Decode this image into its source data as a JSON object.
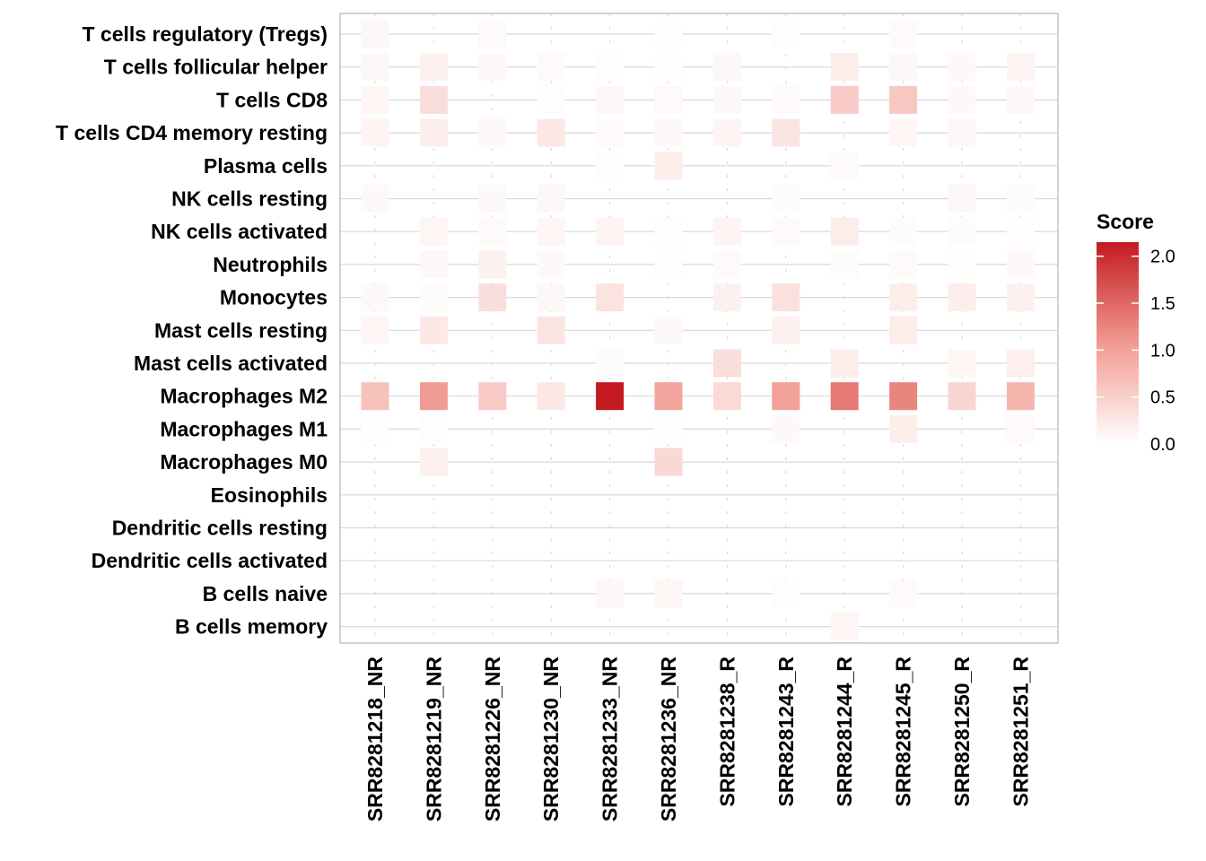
{
  "chart_data": {
    "type": "heatmap",
    "title": "",
    "xlabel": "",
    "ylabel": "",
    "columns": [
      "SRR8281218_NR",
      "SRR8281219_NR",
      "SRR8281226_NR",
      "SRR8281230_NR",
      "SRR8281233_NR",
      "SRR8281236_NR",
      "SRR8281238_R",
      "SRR8281243_R",
      "SRR8281244_R",
      "SRR8281245_R",
      "SRR8281250_R",
      "SRR8281251_R"
    ],
    "rows": [
      "T cells regulatory (Tregs)",
      "T cells follicular helper",
      "T cells CD8",
      "T cells CD4 memory resting",
      "Plasma cells",
      "NK cells resting",
      "NK cells activated",
      "Neutrophils",
      "Monocytes",
      "Mast cells resting",
      "Mast cells activated",
      "Macrophages M2",
      "Macrophages M1",
      "Macrophages M0",
      "Eosinophils",
      "Dendritic cells resting",
      "Dendritic cells activated",
      "B cells naive",
      "B cells memory"
    ],
    "values": [
      [
        0.08,
        0.0,
        0.05,
        0.0,
        0.0,
        0.02,
        0.0,
        0.03,
        0.0,
        0.05,
        0.0,
        0.0
      ],
      [
        0.08,
        0.15,
        0.08,
        0.05,
        0.03,
        0.02,
        0.08,
        0.0,
        0.2,
        0.08,
        0.07,
        0.12
      ],
      [
        0.1,
        0.35,
        0.0,
        0.03,
        0.08,
        0.05,
        0.07,
        0.05,
        0.55,
        0.6,
        0.07,
        0.08
      ],
      [
        0.12,
        0.18,
        0.07,
        0.25,
        0.05,
        0.07,
        0.12,
        0.28,
        0.0,
        0.1,
        0.08,
        0.0
      ],
      [
        0.0,
        0.0,
        0.0,
        0.0,
        0.03,
        0.18,
        0.0,
        0.0,
        0.05,
        0.0,
        0.0,
        0.0
      ],
      [
        0.07,
        0.0,
        0.06,
        0.08,
        0.0,
        0.0,
        0.0,
        0.04,
        0.0,
        0.0,
        0.08,
        0.04
      ],
      [
        0.0,
        0.1,
        0.05,
        0.1,
        0.12,
        0.03,
        0.12,
        0.05,
        0.2,
        0.04,
        0.04,
        0.02
      ],
      [
        0.0,
        0.08,
        0.15,
        0.06,
        0.0,
        0.02,
        0.05,
        0.0,
        0.04,
        0.05,
        0.03,
        0.07
      ],
      [
        0.07,
        0.04,
        0.35,
        0.08,
        0.3,
        0.0,
        0.15,
        0.32,
        0.0,
        0.18,
        0.18,
        0.15
      ],
      [
        0.1,
        0.25,
        0.0,
        0.28,
        0.0,
        0.06,
        0.0,
        0.15,
        0.0,
        0.2,
        0.0,
        0.0
      ],
      [
        0.0,
        0.0,
        0.0,
        0.0,
        0.04,
        0.0,
        0.35,
        0.0,
        0.2,
        0.0,
        0.09,
        0.17
      ],
      [
        0.65,
        1.05,
        0.55,
        0.25,
        2.15,
        0.95,
        0.4,
        1.0,
        1.35,
        1.25,
        0.45,
        0.78
      ],
      [
        0.02,
        0.03,
        0.0,
        0.0,
        0.0,
        0.02,
        0.0,
        0.06,
        0.0,
        0.18,
        0.0,
        0.05
      ],
      [
        0.0,
        0.15,
        0.0,
        0.0,
        0.0,
        0.42,
        0.0,
        0.0,
        0.0,
        0.0,
        0.0,
        0.0
      ],
      [
        0.0,
        0.0,
        0.0,
        0.0,
        0.0,
        0.0,
        0.0,
        0.0,
        0.0,
        0.0,
        0.0,
        0.0
      ],
      [
        0.0,
        0.0,
        0.0,
        0.0,
        0.0,
        0.0,
        0.0,
        0.0,
        0.0,
        0.0,
        0.0,
        0.0
      ],
      [
        0.0,
        0.0,
        0.0,
        0.0,
        0.0,
        0.0,
        0.0,
        0.0,
        0.0,
        0.0,
        0.0,
        0.0
      ],
      [
        0.0,
        0.0,
        0.0,
        0.0,
        0.08,
        0.1,
        0.0,
        0.03,
        0.0,
        0.05,
        0.0,
        0.0
      ],
      [
        0.0,
        0.0,
        0.0,
        0.0,
        0.0,
        0.0,
        0.0,
        0.0,
        0.1,
        0.0,
        0.0,
        0.0
      ]
    ],
    "color_scale": {
      "low": "#ffffff",
      "mid": "#f19a90",
      "high": "#c41a22",
      "min": 0.0,
      "max": 2.15
    },
    "legend": {
      "title": "Score",
      "ticks": [
        "0.0",
        "0.5",
        "1.0",
        "1.5",
        "2.0"
      ],
      "tick_values": [
        0.0,
        0.5,
        1.0,
        1.5,
        2.0
      ],
      "position": "right"
    },
    "grid": true,
    "panel_border_color": "#b3b3b3",
    "grid_color": "#d9d9d9"
  }
}
